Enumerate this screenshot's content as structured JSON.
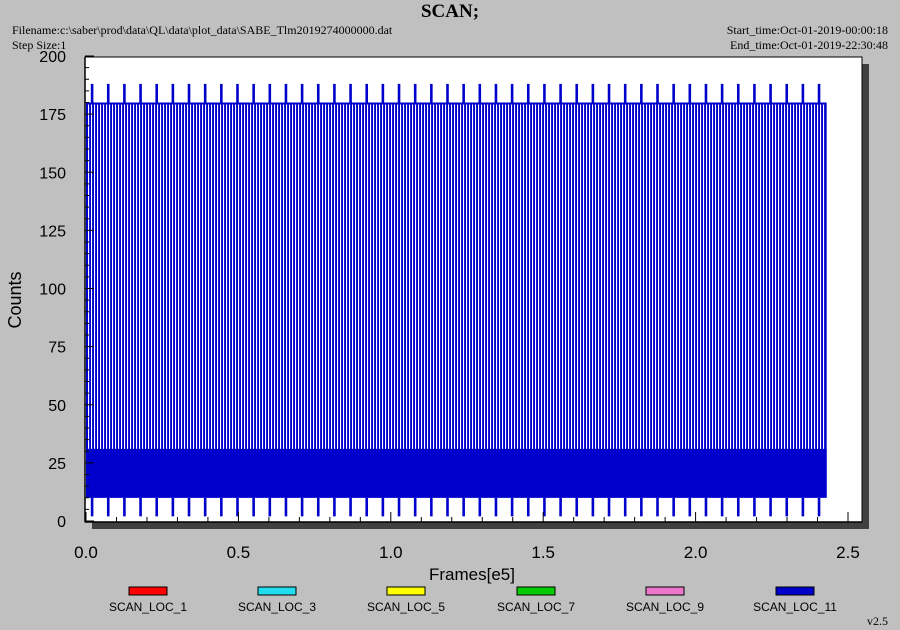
{
  "header": {
    "title": "SCAN;",
    "filename": "Filename:c:\\saber\\prod\\data\\QL\\data\\plot_data\\SABE_Tlm2019274000000.dat",
    "step_size": "Step Size:1",
    "start_time": "Start_time:Oct-01-2019-00:00:18",
    "end_time": "End_time:Oct-01-2019-22:30:48"
  },
  "footer": {
    "version": "v2.5"
  },
  "chart_data": {
    "type": "line",
    "title": "SCAN;",
    "xlabel": "Frames[e5]",
    "ylabel": "Counts",
    "xlim": [
      0,
      2.5
    ],
    "ylim": [
      0,
      200
    ],
    "x_ticks": [
      {
        "value": 0,
        "label": "0.0"
      },
      {
        "value": 0.5,
        "label": "0.5"
      },
      {
        "value": 1.0,
        "label": "1.0"
      },
      {
        "value": 1.5,
        "label": "1.5"
      },
      {
        "value": 2.0,
        "label": "2.0"
      },
      {
        "value": 2.5,
        "label": "2.5"
      }
    ],
    "y_ticks": [
      {
        "value": 0,
        "label": "0"
      },
      {
        "value": 25,
        "label": "25"
      },
      {
        "value": 50,
        "label": "50"
      },
      {
        "value": 75,
        "label": "75"
      },
      {
        "value": 100,
        "label": "100"
      },
      {
        "value": 125,
        "label": "125"
      },
      {
        "value": 150,
        "label": "150"
      },
      {
        "value": 175,
        "label": "175"
      },
      {
        "value": 200,
        "label": "200"
      }
    ],
    "grid": false,
    "legend_position": "bottom",
    "data_extent": {
      "x_start": 0.0,
      "x_end": 2.43
    },
    "pattern": {
      "band_low": 10,
      "band_high": 31,
      "plateau": 180,
      "spike_top": 188,
      "spike_bottom": 2,
      "spike_spacing": 0.053
    },
    "series": [
      {
        "name": "SCAN_LOC_1",
        "color": "#ff0000"
      },
      {
        "name": "SCAN_LOC_3",
        "color": "#22ddee"
      },
      {
        "name": "SCAN_LOC_5",
        "color": "#ffff00"
      },
      {
        "name": "SCAN_LOC_7",
        "color": "#00cc00"
      },
      {
        "name": "SCAN_LOC_9",
        "color": "#ee77cc"
      },
      {
        "name": "SCAN_LOC_11",
        "color": "#0000cc"
      }
    ]
  }
}
